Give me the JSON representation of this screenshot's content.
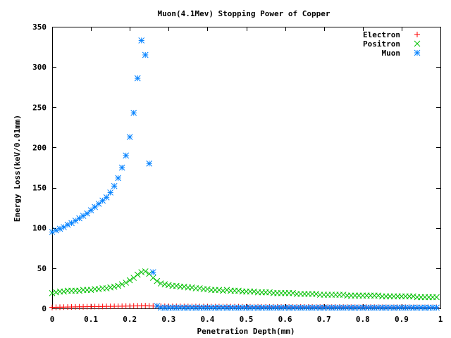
{
  "chart_data": {
    "type": "scatter",
    "title": "Muon(4.1Mev) Stopping Power of Copper",
    "xlabel": "Penetration Depth(mm)",
    "ylabel": "Energy Loss(keV/0.01mm)",
    "xlim": [
      0,
      1
    ],
    "ylim": [
      0,
      350
    ],
    "xticks": [
      "0",
      "0.1",
      "0.2",
      "0.3",
      "0.4",
      "0.5",
      "0.6",
      "0.7",
      "0.8",
      "0.9",
      "1"
    ],
    "yticks": [
      "0",
      "50",
      "100",
      "150",
      "200",
      "250",
      "300",
      "350"
    ],
    "legend_position": "top-right",
    "series": [
      {
        "name": "Electron",
        "marker": "+",
        "color": "#ff0000",
        "x": [
          0.0,
          0.01,
          0.02,
          0.03,
          0.04,
          0.05,
          0.06,
          0.07,
          0.08,
          0.09,
          0.1,
          0.11,
          0.12,
          0.13,
          0.14,
          0.15,
          0.16,
          0.17,
          0.18,
          0.19,
          0.2,
          0.21,
          0.22,
          0.23,
          0.24,
          0.25,
          0.26,
          0.27,
          0.28,
          0.29,
          0.3,
          0.31,
          0.32,
          0.33,
          0.34,
          0.35,
          0.36,
          0.37,
          0.38,
          0.39,
          0.4,
          0.41,
          0.42,
          0.43,
          0.44,
          0.45,
          0.46,
          0.47,
          0.48,
          0.49,
          0.5,
          0.51,
          0.52,
          0.53,
          0.54,
          0.55,
          0.56,
          0.57,
          0.58,
          0.59,
          0.6,
          0.61,
          0.62,
          0.63,
          0.64,
          0.65,
          0.66,
          0.67,
          0.68,
          0.69,
          0.7,
          0.71,
          0.72,
          0.73,
          0.74,
          0.75,
          0.76,
          0.77,
          0.78,
          0.79,
          0.8,
          0.81,
          0.82,
          0.83,
          0.84,
          0.85,
          0.86,
          0.87,
          0.88,
          0.89,
          0.9,
          0.91,
          0.92,
          0.93,
          0.94,
          0.95,
          0.96,
          0.97,
          0.98,
          0.99
        ],
        "y": [
          1.2,
          1.4,
          1.5,
          1.6,
          1.7,
          1.8,
          1.9,
          2.0,
          2.0,
          2.1,
          2.2,
          2.3,
          2.3,
          2.4,
          2.5,
          2.5,
          2.6,
          2.7,
          2.8,
          2.9,
          3.0,
          3.1,
          3.2,
          3.3,
          3.4,
          3.2,
          3.0,
          2.8,
          2.7,
          2.6,
          2.6,
          2.5,
          2.5,
          2.5,
          2.4,
          2.4,
          2.4,
          2.3,
          2.3,
          2.3,
          2.3,
          2.2,
          2.2,
          2.2,
          2.2,
          2.1,
          2.1,
          2.1,
          2.1,
          2.0,
          2.0,
          2.0,
          2.0,
          2.0,
          1.9,
          1.9,
          1.9,
          1.9,
          1.9,
          1.8,
          1.8,
          1.8,
          1.8,
          1.8,
          1.8,
          1.7,
          1.7,
          1.7,
          1.7,
          1.7,
          1.7,
          1.6,
          1.6,
          1.6,
          1.6,
          1.6,
          1.6,
          1.6,
          1.5,
          1.5,
          1.5,
          1.5,
          1.5,
          1.5,
          1.5,
          1.4,
          1.4,
          1.4,
          1.4,
          1.4,
          1.4,
          1.4,
          1.4,
          1.3,
          1.3,
          1.3,
          1.3,
          1.3,
          1.3,
          1.3
        ]
      },
      {
        "name": "Positron",
        "marker": "x",
        "color": "#00c000",
        "x": [
          0.0,
          0.01,
          0.02,
          0.03,
          0.04,
          0.05,
          0.06,
          0.07,
          0.08,
          0.09,
          0.1,
          0.11,
          0.12,
          0.13,
          0.14,
          0.15,
          0.16,
          0.17,
          0.18,
          0.19,
          0.2,
          0.21,
          0.22,
          0.23,
          0.24,
          0.25,
          0.26,
          0.27,
          0.28,
          0.29,
          0.3,
          0.31,
          0.32,
          0.33,
          0.34,
          0.35,
          0.36,
          0.37,
          0.38,
          0.39,
          0.4,
          0.41,
          0.42,
          0.43,
          0.44,
          0.45,
          0.46,
          0.47,
          0.48,
          0.49,
          0.5,
          0.51,
          0.52,
          0.53,
          0.54,
          0.55,
          0.56,
          0.57,
          0.58,
          0.59,
          0.6,
          0.61,
          0.62,
          0.63,
          0.64,
          0.65,
          0.66,
          0.67,
          0.68,
          0.69,
          0.7,
          0.71,
          0.72,
          0.73,
          0.74,
          0.75,
          0.76,
          0.77,
          0.78,
          0.79,
          0.8,
          0.81,
          0.82,
          0.83,
          0.84,
          0.85,
          0.86,
          0.87,
          0.88,
          0.89,
          0.9,
          0.91,
          0.92,
          0.93,
          0.94,
          0.95,
          0.96,
          0.97,
          0.98,
          0.99
        ],
        "y": [
          19,
          20,
          21,
          21,
          22,
          22,
          22,
          22,
          23,
          23,
          23,
          24,
          24,
          25,
          25,
          26,
          27,
          28,
          30,
          32,
          35,
          38,
          42,
          45,
          46,
          43,
          38,
          34,
          31,
          30,
          29,
          28,
          28,
          27,
          27,
          26,
          26,
          25,
          25,
          24,
          24,
          23,
          23,
          23,
          22,
          23,
          22,
          22,
          22,
          21,
          21,
          21,
          21,
          20,
          20,
          20,
          20,
          19,
          19,
          19,
          19,
          19,
          19,
          18,
          18,
          18,
          18,
          18,
          18,
          17,
          17,
          17,
          17,
          17,
          17,
          17,
          16,
          16,
          16,
          16,
          16,
          16,
          16,
          16,
          16,
          15,
          15,
          15,
          15,
          15,
          15,
          15,
          15,
          15,
          14,
          14,
          14,
          14,
          14,
          14
        ]
      },
      {
        "name": "Muon",
        "marker": "*",
        "color": "#0080ff",
        "x": [
          0.0,
          0.01,
          0.02,
          0.03,
          0.04,
          0.05,
          0.06,
          0.07,
          0.08,
          0.09,
          0.1,
          0.11,
          0.12,
          0.13,
          0.14,
          0.15,
          0.16,
          0.17,
          0.18,
          0.19,
          0.2,
          0.21,
          0.22,
          0.23,
          0.24,
          0.25,
          0.26,
          0.27,
          0.28,
          0.29,
          0.3,
          0.31,
          0.32,
          0.33,
          0.34,
          0.35,
          0.36,
          0.37,
          0.38,
          0.39,
          0.4,
          0.41,
          0.42,
          0.43,
          0.44,
          0.45,
          0.46,
          0.47,
          0.48,
          0.49,
          0.5,
          0.51,
          0.52,
          0.53,
          0.54,
          0.55,
          0.56,
          0.57,
          0.58,
          0.59,
          0.6,
          0.61,
          0.62,
          0.63,
          0.64,
          0.65,
          0.66,
          0.67,
          0.68,
          0.69,
          0.7,
          0.71,
          0.72,
          0.73,
          0.74,
          0.75,
          0.76,
          0.77,
          0.78,
          0.79,
          0.8,
          0.81,
          0.82,
          0.83,
          0.84,
          0.85,
          0.86,
          0.87,
          0.88,
          0.89,
          0.9,
          0.91,
          0.92,
          0.93,
          0.94,
          0.95,
          0.96,
          0.97,
          0.98,
          0.99
        ],
        "y": [
          95,
          97,
          99,
          101,
          104,
          106,
          109,
          112,
          115,
          118,
          122,
          126,
          130,
          134,
          138,
          144,
          152,
          162,
          175,
          190,
          213,
          243,
          286,
          333,
          315,
          180,
          45,
          3,
          1,
          1,
          1,
          1,
          1,
          1,
          1,
          1,
          1,
          1,
          1,
          1,
          1,
          1,
          1,
          1,
          1,
          1,
          1,
          1,
          1,
          1,
          1,
          1,
          1,
          1,
          1,
          1,
          1,
          1,
          1,
          1,
          1,
          1,
          1,
          1,
          1,
          1,
          1,
          1,
          1,
          1,
          1,
          1,
          1,
          1,
          1,
          1,
          1,
          1,
          1,
          1,
          1,
          1,
          1,
          1,
          1,
          1,
          1,
          1,
          1,
          1,
          1,
          1,
          1,
          1,
          1,
          1,
          1,
          1,
          1,
          1
        ]
      }
    ]
  }
}
